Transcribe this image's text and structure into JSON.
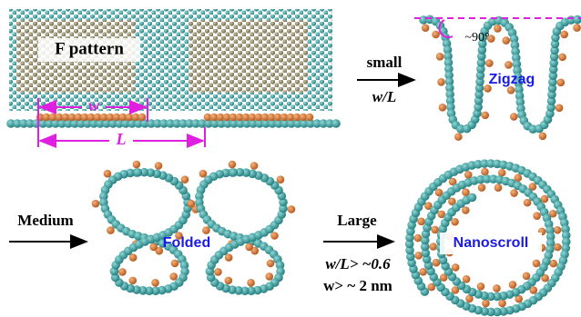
{
  "sheet": {
    "label": "F pattern",
    "w": "w",
    "L": "L"
  },
  "zigzag": {
    "condition": "small",
    "ratio": "w/L",
    "angle": "~90°",
    "label": "Zigzag"
  },
  "folded": {
    "condition": "Medium",
    "label": "Folded"
  },
  "nanoscroll": {
    "condition": "Large",
    "ratio_condition": "w/L> ~0.6",
    "width_condition": "w> ~ 2 nm",
    "label": "Nanoscroll"
  }
}
